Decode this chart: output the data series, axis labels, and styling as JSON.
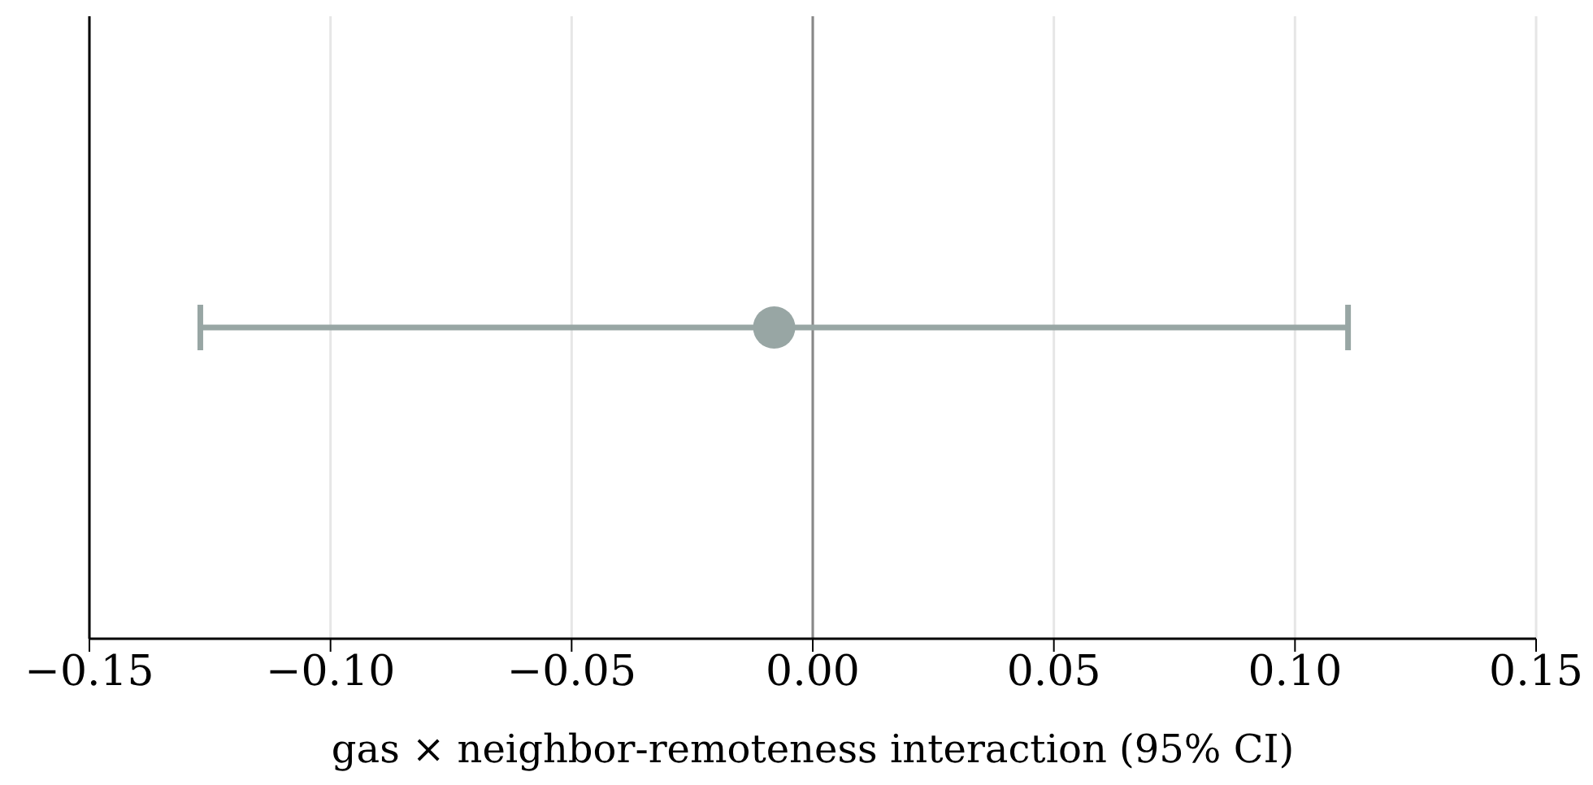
{
  "chart_data": {
    "type": "scatter",
    "orientation": "horizontal",
    "categories": [
      null
    ],
    "values": [
      -0.008
    ],
    "errors": [
      [
        -0.127,
        0.111
      ]
    ],
    "color": "#98a6a4",
    "marker": "circle",
    "xlabel": "gas × neighbor-remoteness interaction (95% CI)",
    "xlim": [
      -0.15,
      0.15
    ],
    "xticks": [
      {
        "value": -0.15,
        "label": "−0.15"
      },
      {
        "value": -0.1,
        "label": "−0.10"
      },
      {
        "value": -0.05,
        "label": "−0.05"
      },
      {
        "value": 0,
        "label": "0.00"
      },
      {
        "value": 0.05,
        "label": "0.05"
      },
      {
        "value": 0.1,
        "label": "0.10"
      },
      {
        "value": 0.15,
        "label": "0.15"
      }
    ],
    "ref_lines": [
      {
        "axis": "x",
        "value": 0,
        "color": "#888888"
      }
    ],
    "grid": "x",
    "tick_labels": "x"
  }
}
